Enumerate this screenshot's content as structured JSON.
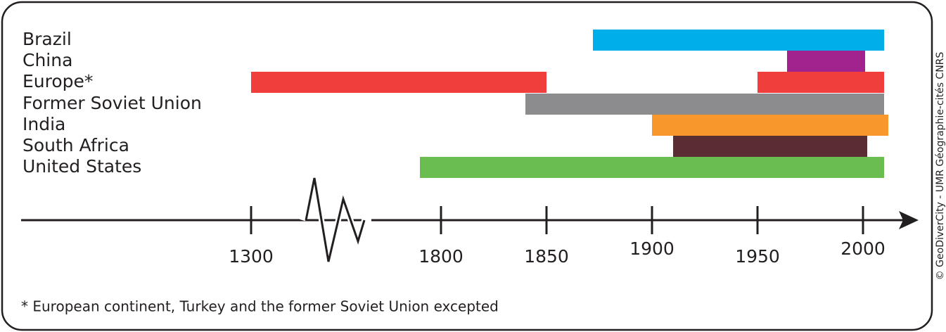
{
  "chart_data": {
    "type": "timeline",
    "axis_break": true,
    "xticks": [
      1300,
      1800,
      1850,
      1900,
      1950,
      2000
    ],
    "series": [
      {
        "name": "Brazil",
        "color": "#00aee8",
        "ranges": [
          [
            1872,
            2010
          ]
        ]
      },
      {
        "name": "China",
        "color": "#a3238e",
        "ranges": [
          [
            1964,
            2001
          ]
        ]
      },
      {
        "name": "Europe*",
        "color": "#ef3e3c",
        "ranges": [
          [
            1300,
            1850
          ],
          [
            1950,
            2010
          ]
        ]
      },
      {
        "name": "Former Soviet Union",
        "color": "#8c8c8f",
        "ranges": [
          [
            1840,
            2010
          ]
        ]
      },
      {
        "name": "India",
        "color": "#f7972c",
        "ranges": [
          [
            1900,
            2012
          ]
        ]
      },
      {
        "name": "South Africa",
        "color": "#5c2c33",
        "ranges": [
          [
            1910,
            2002
          ]
        ]
      },
      {
        "name": "United States",
        "color": "#6abd4f",
        "ranges": [
          [
            1790,
            2010
          ]
        ]
      }
    ],
    "footnote": "* European continent, Turkey and the former Soviet Union excepted",
    "credit": "© GeoDiverCity - UMR Géographie-cités CNRS"
  }
}
